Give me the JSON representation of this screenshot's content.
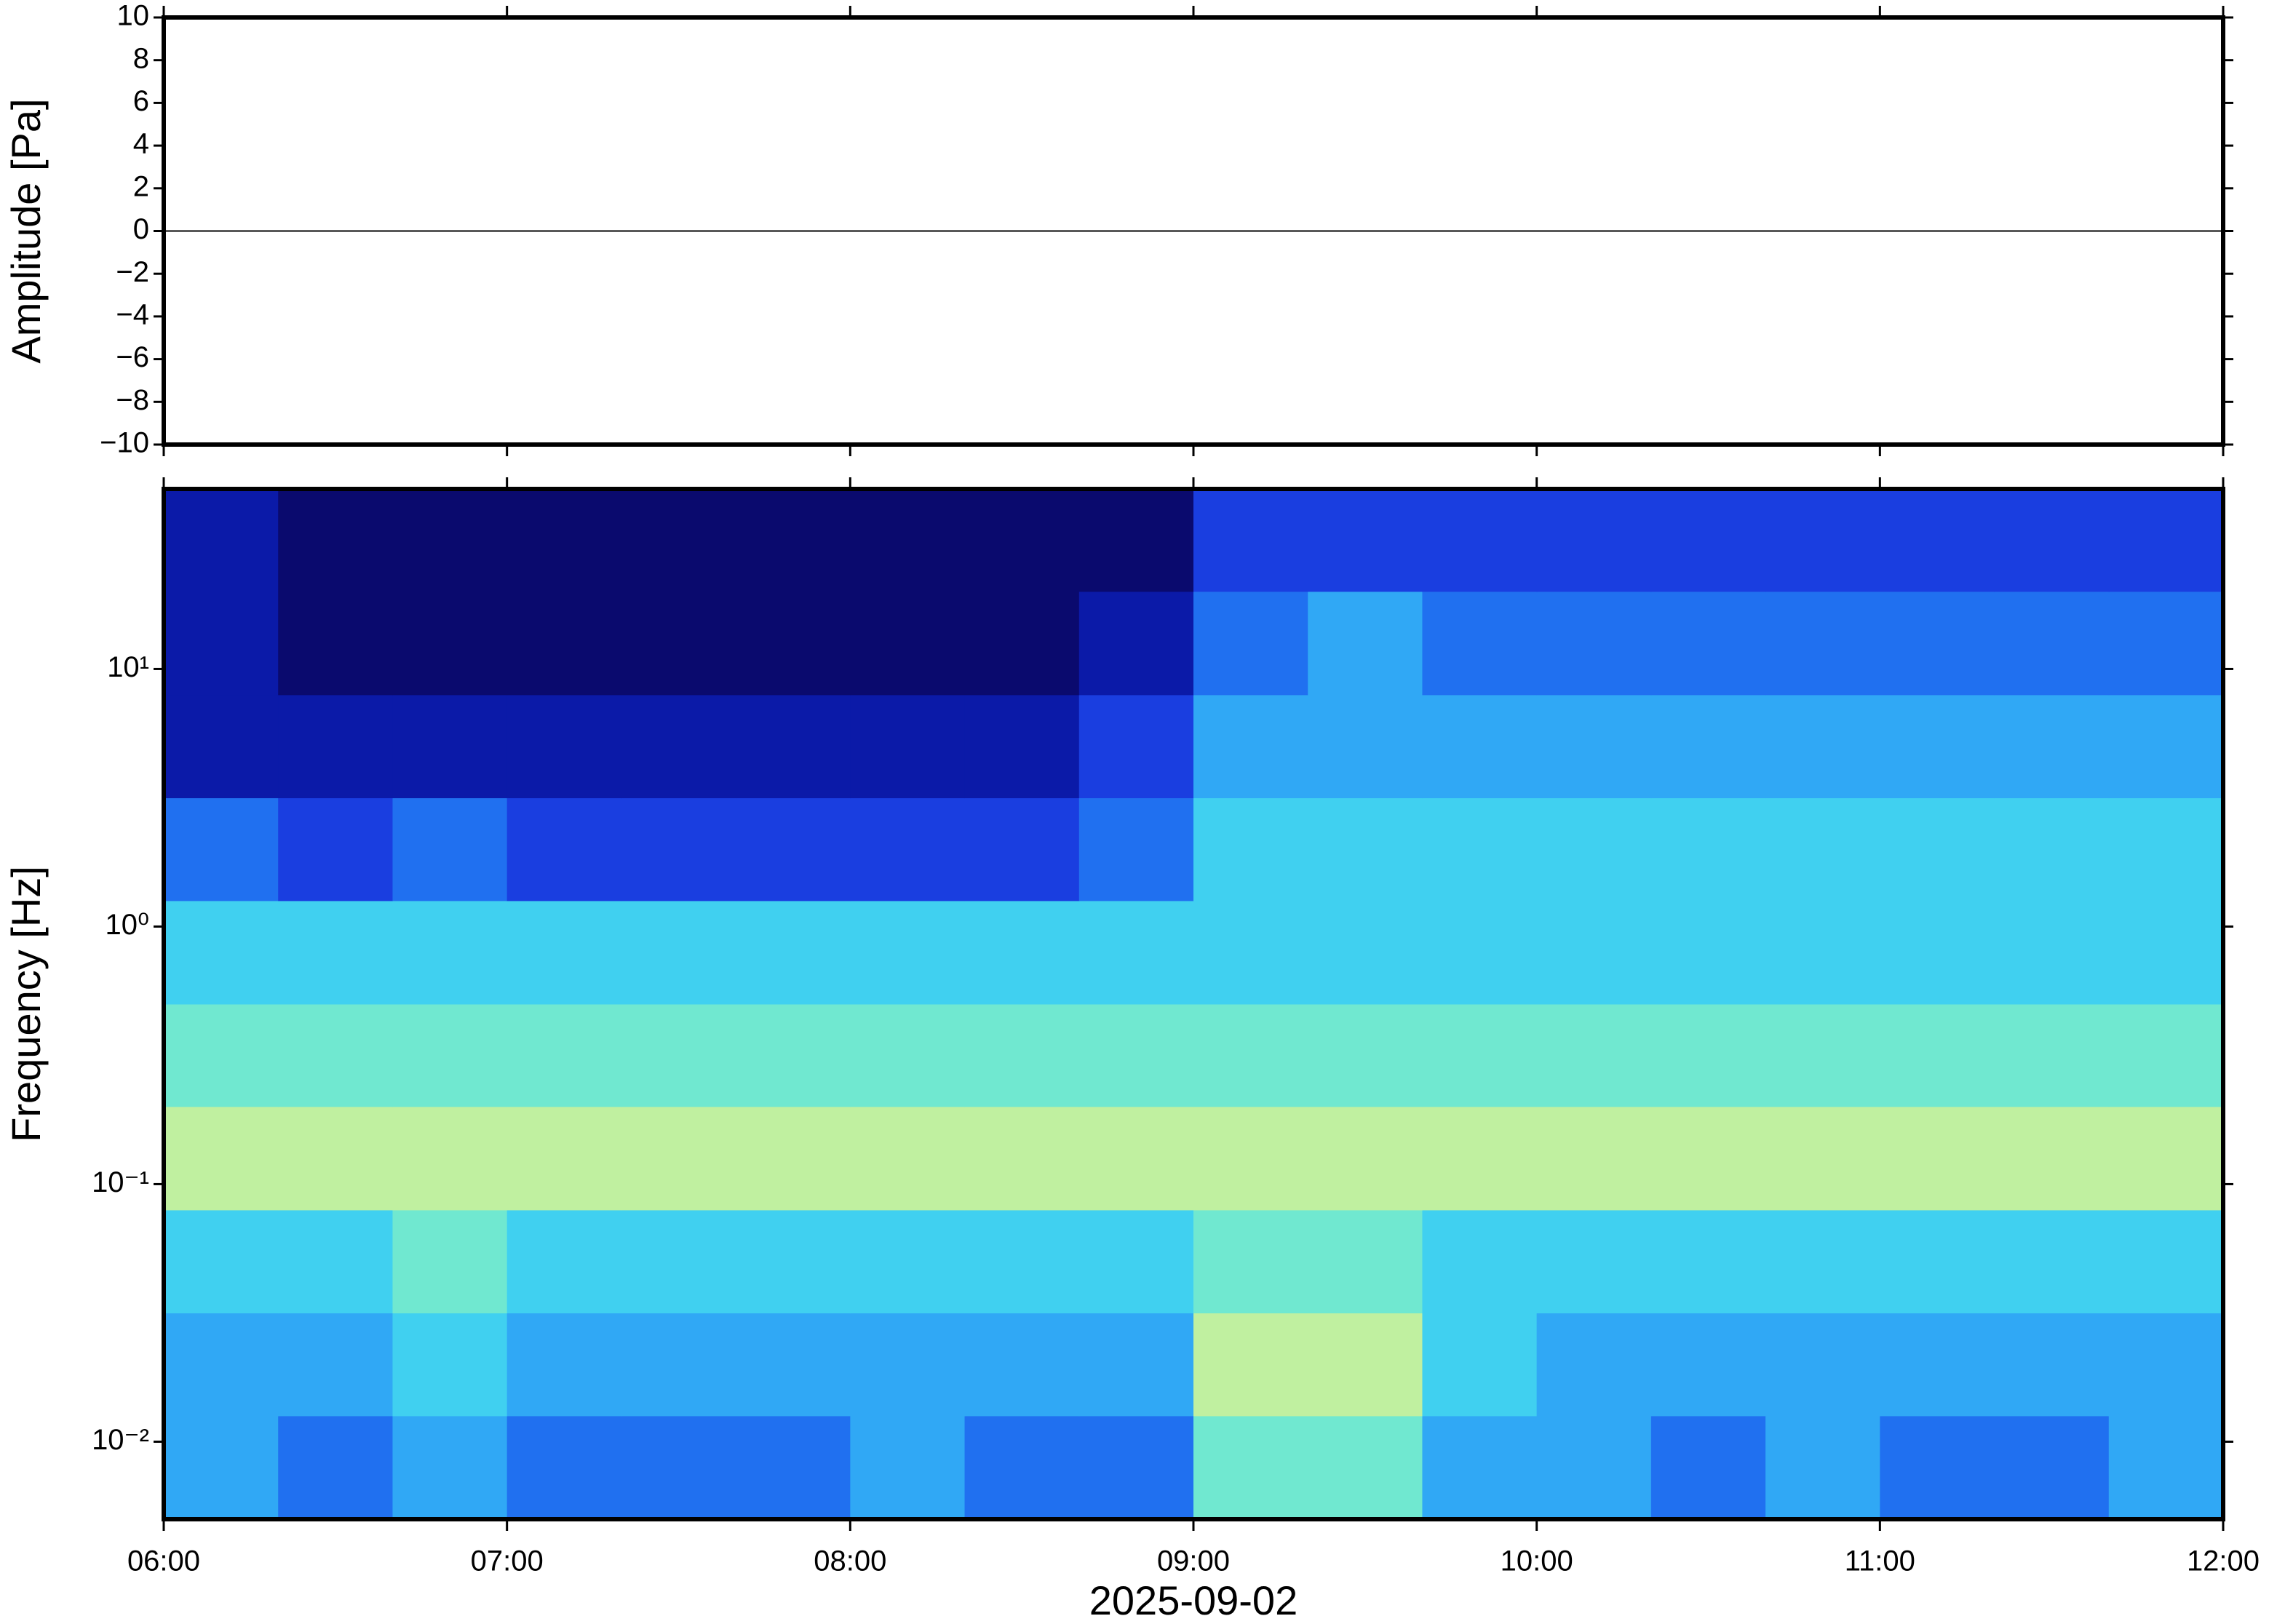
{
  "chart_data": [
    {
      "type": "line",
      "ylabel": "Amplitude [Pa]",
      "color": "#000000",
      "x": [
        6,
        7,
        8,
        9,
        10,
        11,
        12
      ],
      "values": [
        0,
        0,
        0,
        0,
        0,
        0,
        0
      ],
      "xlim": [
        6,
        12
      ],
      "xticks": [
        6,
        7,
        8,
        9,
        10,
        11,
        12
      ],
      "ylim": [
        -10,
        10
      ],
      "yticks": [
        {
          "value": -10,
          "label": "−10"
        },
        {
          "value": -8,
          "label": "−8"
        },
        {
          "value": -6,
          "label": "−6"
        },
        {
          "value": -4,
          "label": "−4"
        },
        {
          "value": -2,
          "label": "−2"
        },
        0,
        2,
        4,
        6,
        8,
        10
      ]
    },
    {
      "type": "heatmap",
      "ylabel": "Frequency [Hz]",
      "xlabel": "2025-09-02",
      "ylog": true,
      "xlim": [
        6,
        12
      ],
      "xticks": [
        {
          "value": 6,
          "label": "06:00"
        },
        {
          "value": 7,
          "label": "07:00"
        },
        {
          "value": 8,
          "label": "08:00"
        },
        {
          "value": 9,
          "label": "09:00"
        },
        {
          "value": 10,
          "label": "10:00"
        },
        {
          "value": 11,
          "label": "11:00"
        },
        {
          "value": 12,
          "label": "12:00"
        }
      ],
      "ylim": [
        0.005,
        50
      ],
      "yticks": [
        {
          "value": 0.01,
          "label": "10⁻²"
        },
        {
          "value": 0.1,
          "label": "10⁻¹"
        },
        {
          "value": 1,
          "label": "10⁰"
        },
        {
          "value": 10,
          "label": "10¹"
        }
      ],
      "x_bins": [
        6,
        6.3333,
        6.6667,
        7,
        7.3333,
        7.6667,
        8,
        8.3333,
        8.6667,
        9,
        9.3333,
        9.6667,
        10,
        10.3333,
        10.6667,
        11,
        11.3333,
        11.6667,
        12
      ],
      "y_bins": [
        0.005,
        0.0126,
        0.0316,
        0.0794,
        0.2,
        0.5,
        1.26,
        3.16,
        7.94,
        20,
        50
      ],
      "colorscale": [
        "#0a0a6e",
        "#0b1aa8",
        "#1a3ee0",
        "#2070f0",
        "#30a8f5",
        "#40d0f0",
        "#70e8d0",
        "#c0f0a0",
        "#e8f59a"
      ],
      "values": [
        [
          4,
          3,
          4,
          3,
          3,
          3,
          4,
          3,
          3,
          6,
          6,
          4,
          4,
          3,
          4,
          3,
          3,
          4
        ],
        [
          4,
          4,
          5,
          4,
          4,
          4,
          4,
          4,
          4,
          7,
          7,
          5,
          4,
          4,
          4,
          4,
          4,
          4
        ],
        [
          5,
          5,
          6,
          5,
          5,
          5,
          5,
          5,
          5,
          6,
          6,
          5,
          5,
          5,
          5,
          5,
          5,
          5
        ],
        [
          7,
          7,
          7,
          7,
          7,
          7,
          7,
          7,
          7,
          7,
          7,
          7,
          7,
          7,
          7,
          7,
          7,
          7
        ],
        [
          6,
          6,
          6,
          6,
          6,
          6,
          6,
          6,
          6,
          6,
          6,
          6,
          6,
          6,
          6,
          6,
          6,
          6
        ],
        [
          5,
          5,
          5,
          5,
          5,
          5,
          5,
          5,
          5,
          5,
          5,
          5,
          5,
          5,
          5,
          5,
          5,
          5
        ],
        [
          3,
          2,
          3,
          2,
          2,
          2,
          2,
          2,
          3,
          5,
          5,
          5,
          5,
          5,
          5,
          5,
          5,
          5
        ],
        [
          1,
          1,
          1,
          1,
          1,
          1,
          1,
          1,
          2,
          4,
          4,
          4,
          4,
          4,
          4,
          4,
          4,
          4
        ],
        [
          1,
          0,
          0,
          0,
          0,
          0,
          0,
          0,
          1,
          3,
          4,
          3,
          3,
          3,
          3,
          3,
          3,
          3
        ],
        [
          1,
          0,
          0,
          0,
          0,
          0,
          0,
          0,
          0,
          2,
          2,
          2,
          2,
          2,
          2,
          2,
          2,
          2
        ]
      ]
    }
  ]
}
